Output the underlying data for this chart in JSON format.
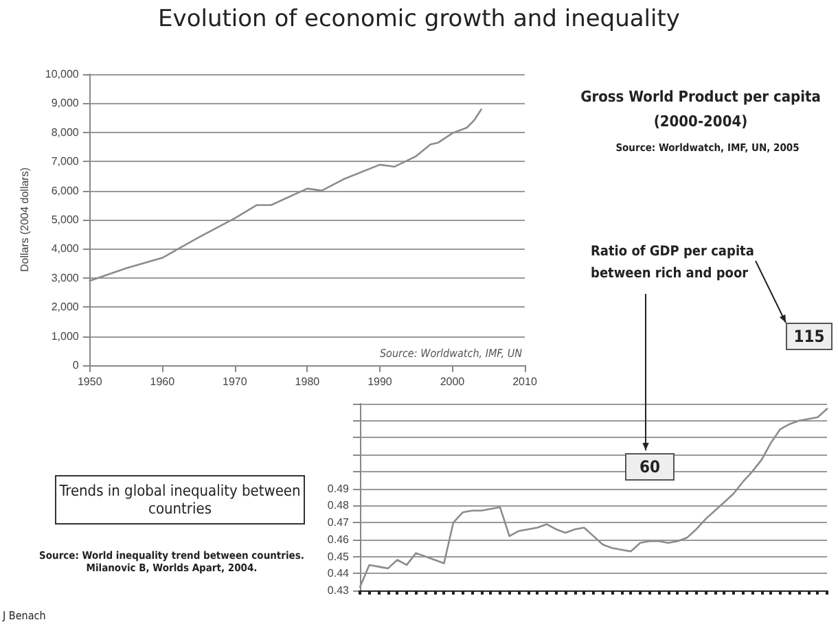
{
  "chart_data": [
    {
      "type": "line",
      "title": "Evolution of economic growth and inequality",
      "ylabel": "Dollars (2004 dollars)",
      "annotations": [
        "Source: Worldwatch, IMF, UN",
        "Gross World Product per capita (2000-2004)",
        "Source: Worldwatch, IMF, UN, 2005"
      ],
      "x": [
        1950,
        1955,
        1960,
        1965,
        1970,
        1973,
        1975,
        1980,
        1982,
        1985,
        1990,
        1992,
        1995,
        1997,
        1998,
        2000,
        2002,
        2003,
        2004
      ],
      "series": [
        {
          "color": "#8c8c8c",
          "values": [
            2900,
            3330,
            3690,
            4390,
            5050,
            5500,
            5500,
            6070,
            6000,
            6390,
            6890,
            6820,
            7180,
            7590,
            7640,
            7970,
            8160,
            8410,
            8790
          ]
        }
      ],
      "xlim": [
        1950,
        2010
      ],
      "xticks": [
        1950,
        1960,
        1970,
        1980,
        1990,
        2000,
        2010
      ],
      "ylim": [
        0,
        10000
      ],
      "yticks": [
        0,
        {
          "value": 1000,
          "label": "1,000"
        },
        {
          "value": 2000,
          "label": "2,000"
        },
        {
          "value": 3000,
          "label": "3,000"
        },
        {
          "value": 4000,
          "label": "4,000"
        },
        {
          "value": 5000,
          "label": "5,000"
        },
        {
          "value": 6000,
          "label": "6,000"
        },
        {
          "value": 7000,
          "label": "7,000"
        },
        {
          "value": 8000,
          "label": "8,000"
        },
        {
          "value": 9000,
          "label": "9,000"
        },
        {
          "value": 10000,
          "label": "10,000"
        }
      ],
      "grid": "y",
      "marker": "none",
      "line_style": "solid"
    },
    {
      "type": "line",
      "title": "Trends in global inequality between countries",
      "annotations": [
        "Source: World inequality trend between countries. Milanovic B, Worlds Apart, 2004.",
        "Ratio of GDP per capita between rich and poor",
        "115",
        "60",
        "J Benach"
      ],
      "categories": [
        null,
        null,
        null,
        null,
        null,
        null,
        null,
        null,
        null,
        null,
        null,
        null,
        null,
        null,
        null,
        null,
        null,
        null,
        null,
        null,
        null,
        null,
        null,
        null,
        null,
        null,
        null,
        null,
        null,
        null,
        null,
        null,
        null,
        null,
        null,
        null,
        null,
        null,
        null,
        null,
        null,
        null,
        null,
        null,
        null,
        null,
        null,
        null,
        null,
        null,
        null
      ],
      "series": [
        {
          "color": "#8c8c8c",
          "values": [
            0.432,
            0.445,
            0.444,
            0.443,
            0.448,
            0.445,
            0.452,
            0.45,
            0.448,
            0.446,
            0.47,
            0.476,
            0.477,
            0.477,
            0.478,
            0.479,
            0.462,
            0.465,
            0.466,
            0.467,
            0.469,
            0.466,
            0.464,
            0.466,
            0.467,
            0.462,
            0.457,
            0.455,
            0.454,
            0.453,
            0.458,
            0.459,
            0.459,
            0.458,
            0.459,
            0.461,
            0.466,
            0.472,
            0.477,
            0.482,
            0.487,
            0.494,
            0.5,
            0.507,
            0.517,
            0.525,
            0.528,
            0.53,
            0.531,
            0.532,
            0.537
          ]
        }
      ],
      "ylim": [
        0.43,
        0.54
      ],
      "yticks": [
        0.43,
        0.44,
        0.45,
        0.46,
        0.47,
        0.48,
        0.49,
        {
          "value": 0.5,
          "label": null
        },
        {
          "value": 0.51,
          "label": null
        },
        {
          "value": 0.52,
          "label": null
        },
        {
          "value": 0.53,
          "label": null
        },
        {
          "value": 0.54,
          "label": null
        }
      ],
      "grid": "y",
      "tick_labels": "y",
      "marker": "none",
      "line_style": "solid"
    }
  ]
}
